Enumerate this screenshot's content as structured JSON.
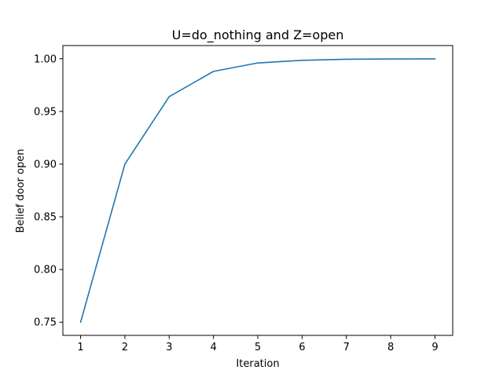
{
  "chart_data": {
    "type": "line",
    "title": "U=do_nothing and Z=open",
    "xlabel": "Iteration",
    "ylabel": "Belief door open",
    "x": [
      1,
      2,
      3,
      4,
      5,
      6,
      7,
      8,
      9
    ],
    "series": [
      {
        "values": [
          0.75,
          0.9,
          0.964,
          0.988,
          0.996,
          0.9985,
          0.9995,
          0.9998,
          0.9999
        ]
      }
    ],
    "xlim": [
      0.6,
      9.4
    ],
    "ylim": [
      0.7375,
      1.0125
    ],
    "xticks": [
      1,
      2,
      3,
      4,
      5,
      6,
      7,
      8,
      9
    ],
    "yticks": [
      "0.75",
      "0.80",
      "0.85",
      "0.90",
      "0.95",
      "1.00"
    ],
    "grid": false,
    "legend": "none",
    "colors": {
      "line": "#1f77b4",
      "axis": "#000000",
      "background": "#ffffff"
    }
  }
}
